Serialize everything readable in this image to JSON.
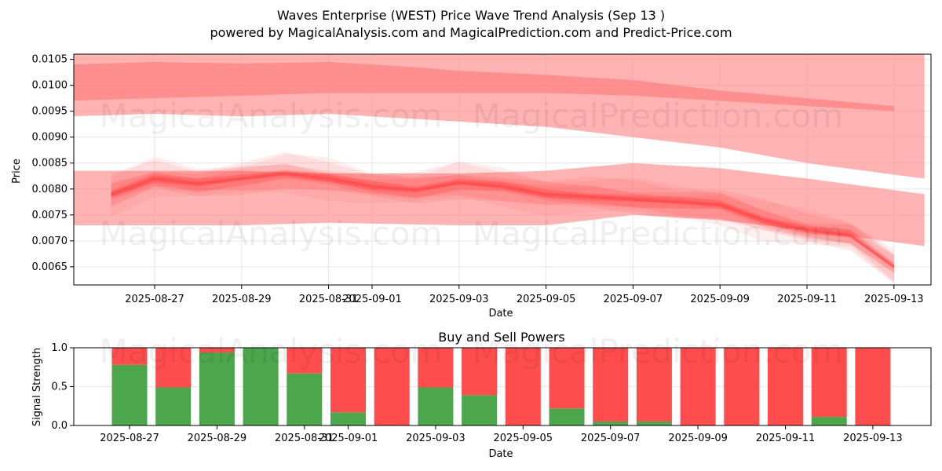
{
  "title": {
    "line1": "Waves Enterprise (WEST) Price Wave Trend Analysis (Sep 13 )",
    "line2": "powered by MagicalAnalysis.com and MagicalPrediction.com and Predict-Price.com"
  },
  "watermarks": [
    "MagicalAnalysis.com",
    "MagicalPrediction.com"
  ],
  "colors": {
    "wave": "#ff3b3b",
    "band": "#ff8080",
    "buy": "#4ca64c",
    "sell": "#ff4d4d",
    "grid": "#e6e6e6"
  },
  "chart_data": [
    {
      "type": "area",
      "title": "",
      "xlabel": "Date",
      "ylabel": "Price",
      "ylim": [
        0.00615,
        0.0106
      ],
      "grid": true,
      "x_ticks": [
        "2025-08-27",
        "2025-08-29",
        "2025-08-31",
        "2025-09-01",
        "2025-09-03",
        "2025-09-05",
        "2025-09-07",
        "2025-09-09",
        "2025-09-11",
        "2025-09-13"
      ],
      "y_ticks": [
        "0.0065",
        "0.0070",
        "0.0075",
        "0.0080",
        "0.0085",
        "0.0090",
        "0.0095",
        "0.0100",
        "0.0105"
      ],
      "series": [
        {
          "x": [
            "2025-08-26",
            "2025-08-27",
            "2025-08-28",
            "2025-08-29",
            "2025-08-30",
            "2025-08-31",
            "2025-09-01",
            "2025-09-02",
            "2025-09-03",
            "2025-09-04",
            "2025-09-05",
            "2025-09-06",
            "2025-09-07",
            "2025-09-08",
            "2025-09-09",
            "2025-09-10",
            "2025-09-11",
            "2025-09-12",
            "2025-09-13"
          ],
          "values": [
            0.0079,
            0.0082,
            0.0081,
            0.0082,
            0.0083,
            0.0082,
            0.00805,
            0.00798,
            0.00812,
            0.00805,
            0.0079,
            0.00785,
            0.0078,
            0.00775,
            0.0077,
            0.0074,
            0.0072,
            0.0071,
            0.0065
          ]
        }
      ],
      "bands": [
        {
          "x": [
            "2025-08-25",
            "2025-08-27",
            "2025-08-29",
            "2025-08-31",
            "2025-09-02",
            "2025-09-03",
            "2025-09-05",
            "2025-09-07",
            "2025-09-09",
            "2025-09-11",
            "2025-09-13"
          ],
          "upper": [
            0.0104,
            0.01045,
            0.01042,
            0.01045,
            0.01035,
            0.01028,
            0.0102,
            0.0101,
            0.0099,
            0.00975,
            0.0096
          ],
          "lower": [
            0.0097,
            0.00975,
            0.0098,
            0.00985,
            0.00985,
            0.00985,
            0.00985,
            0.0098,
            0.0097,
            0.0096,
            0.0095
          ]
        },
        {
          "x": [
            "2025-08-25",
            "2025-08-27",
            "2025-08-29",
            "2025-08-31",
            "2025-09-03",
            "2025-09-05",
            "2025-09-07",
            "2025-09-09",
            "2025-09-11",
            "2025-09-13.7"
          ],
          "upper": [
            0.0106,
            0.0106,
            0.0106,
            0.0106,
            0.0106,
            0.0106,
            0.0106,
            0.0106,
            0.0106,
            0.0106
          ],
          "lower": [
            0.0094,
            0.00945,
            0.0094,
            0.00945,
            0.0093,
            0.0092,
            0.009,
            0.0088,
            0.0085,
            0.0082
          ]
        },
        {
          "x": [
            "2025-08-25",
            "2025-08-27",
            "2025-08-29",
            "2025-08-31",
            "2025-09-03",
            "2025-09-05",
            "2025-09-07",
            "2025-09-09",
            "2025-09-11",
            "2025-09-13.7"
          ],
          "upper": [
            0.00835,
            0.00835,
            0.00835,
            0.0083,
            0.0083,
            0.00835,
            0.0085,
            0.0084,
            0.0082,
            0.0079
          ],
          "lower": [
            0.0073,
            0.0073,
            0.0073,
            0.00735,
            0.0073,
            0.0073,
            0.0075,
            0.0074,
            0.0072,
            0.0069
          ]
        }
      ]
    },
    {
      "type": "bar",
      "title": "Buy and Sell Powers",
      "xlabel": "Date",
      "ylabel": "Signal Strength",
      "ylim": [
        0,
        1.0
      ],
      "y_ticks": [
        "0.0",
        "0.5",
        "1.0"
      ],
      "x_ticks": [
        "2025-08-27",
        "2025-08-29",
        "2025-08-31",
        "2025-09-01",
        "2025-09-03",
        "2025-09-05",
        "2025-09-07",
        "2025-09-09",
        "2025-09-11",
        "2025-09-13"
      ],
      "categories": [
        "2025-08-27",
        "2025-08-28",
        "2025-08-29",
        "2025-08-30",
        "2025-08-31",
        "2025-09-01",
        "2025-09-02",
        "2025-09-03",
        "2025-09-04",
        "2025-09-05",
        "2025-09-06",
        "2025-09-07",
        "2025-09-08",
        "2025-09-09",
        "2025-09-10",
        "2025-09-11",
        "2025-09-12",
        "2025-09-13"
      ],
      "series": [
        {
          "values": [
            0.78,
            0.49,
            0.94,
            1.0,
            0.67,
            0.17,
            0.0,
            0.49,
            0.39,
            0.0,
            0.22,
            0.05,
            0.05,
            0.0,
            0.0,
            0.0,
            0.11,
            0.0
          ]
        },
        {
          "values": [
            0.22,
            0.51,
            0.06,
            0.0,
            0.33,
            0.83,
            1.0,
            0.51,
            0.61,
            1.0,
            0.78,
            0.95,
            0.95,
            1.0,
            1.0,
            1.0,
            0.89,
            1.0
          ]
        }
      ]
    }
  ]
}
